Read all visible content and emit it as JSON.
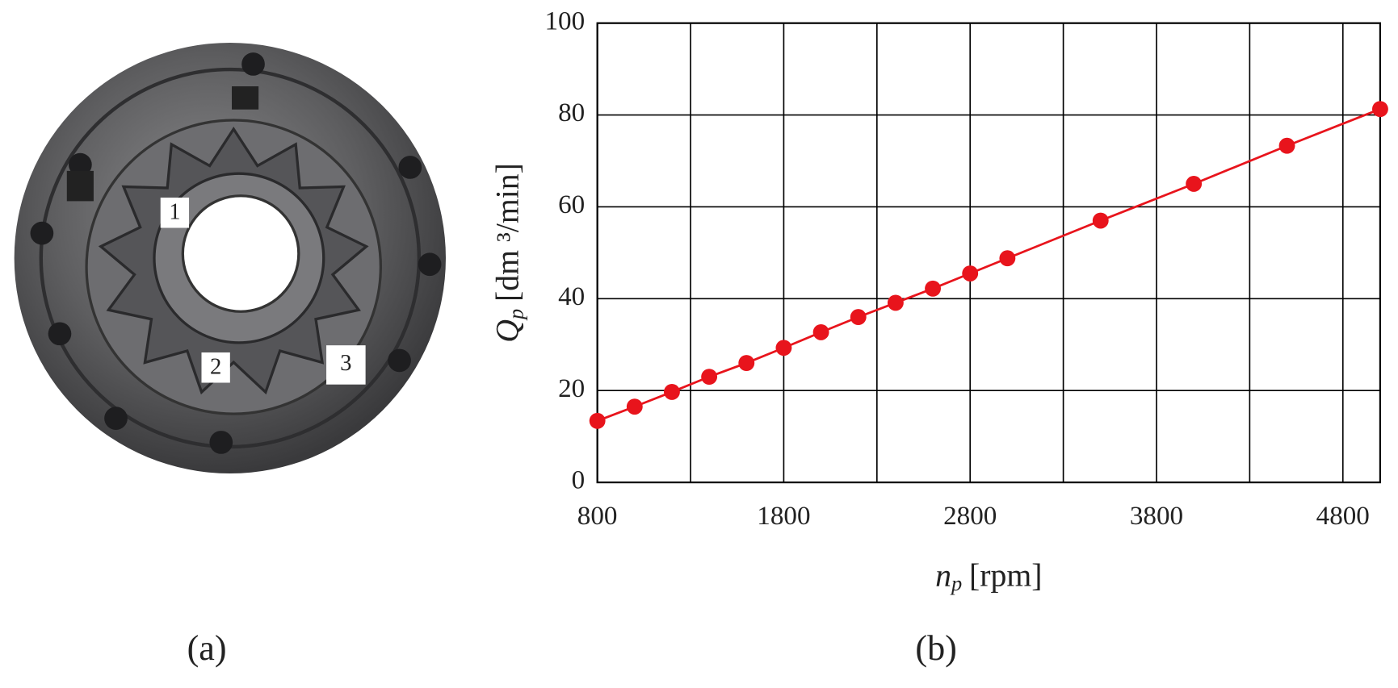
{
  "chart_data": {
    "type": "line",
    "x_label": {
      "symbol": "n",
      "subscript": "p",
      "unit": "[rpm]"
    },
    "y_label": {
      "symbol": "Q",
      "subscript": "p",
      "unit": "[dm ³/min]"
    },
    "caption": "(b)",
    "x": [
      800,
      1000,
      1200,
      1400,
      1600,
      1800,
      2000,
      2200,
      2400,
      2600,
      2800,
      3000,
      3500,
      4000,
      4500,
      5000
    ],
    "series": [
      {
        "color": "#e8141c",
        "values": [
          13.4,
          16.5,
          19.7,
          23.0,
          26.0,
          29.3,
          32.7,
          36.0,
          39.1,
          42.2,
          45.5,
          48.8,
          57.0,
          65.0,
          73.3,
          81.3
        ]
      }
    ],
    "xlim": [
      800,
      5000
    ],
    "xticks": [
      800,
      1800,
      2800,
      3800,
      4800
    ],
    "xgrid": [
      1300,
      2300,
      3300,
      4300
    ],
    "ylim": [
      0,
      100
    ],
    "yticks": [
      0,
      20,
      40,
      60,
      80,
      100
    ],
    "grid": true
  },
  "photo": {
    "labels": [
      "1",
      "2",
      "3"
    ],
    "caption": "(a)"
  }
}
